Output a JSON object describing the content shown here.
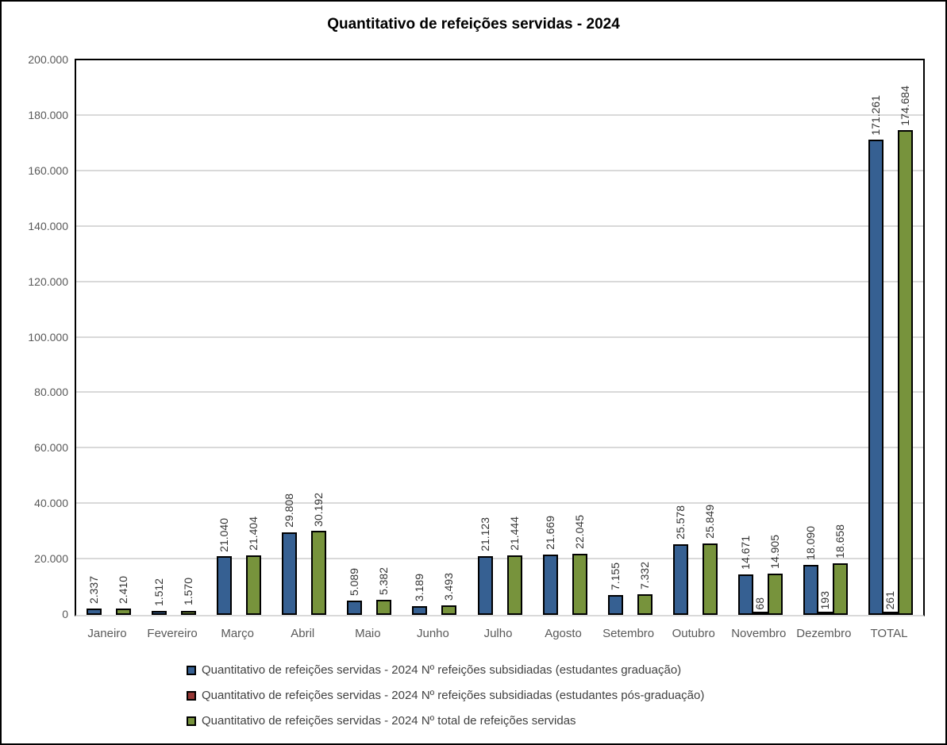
{
  "title": "Quantitativo de refeições servidas - 2024",
  "chart_data": {
    "type": "bar",
    "title": "Quantitativo de refeições servidas - 2024",
    "xlabel": "",
    "ylabel": "",
    "ylim": [
      0,
      200000
    ],
    "ytick_step": 20000,
    "ytick_labels": [
      "0",
      "20.000",
      "40.000",
      "60.000",
      "80.000",
      "100.000",
      "120.000",
      "140.000",
      "160.000",
      "180.000",
      "200.000"
    ],
    "grid": true,
    "gridline_color": "#d9d9d9",
    "axis_label_color": "#595959",
    "bar_border_color": "#000000",
    "legend_position": "bottom",
    "value_labels_rotated": true,
    "categories": [
      "Janeiro",
      "Fevereiro",
      "Março",
      "Abril",
      "Maio",
      "Junho",
      "Julho",
      "Agosto",
      "Setembro",
      "Outubro",
      "Novembro",
      "Dezembro",
      "TOTAL"
    ],
    "series": [
      {
        "name": "Quantitativo de refeições servidas - 2024 Nº refeições subsidiadas (estudantes graduação)",
        "color": "#366092",
        "values": [
          2337,
          1512,
          21040,
          29808,
          5089,
          3189,
          21123,
          21669,
          7155,
          25578,
          14671,
          18090,
          171261
        ]
      },
      {
        "name": "Quantitativo de refeições servidas - 2024 Nº refeições subsidiadas (estudantes pós-graduação)",
        "color": "#953735",
        "values": [
          null,
          null,
          null,
          null,
          null,
          null,
          null,
          null,
          null,
          null,
          68,
          193,
          261
        ]
      },
      {
        "name": "Quantitativo de refeições servidas - 2024 Nº total de refeições servidas",
        "color": "#77933C",
        "values": [
          2410,
          1570,
          21404,
          30192,
          5382,
          3493,
          21444,
          22045,
          7332,
          25849,
          14905,
          18658,
          174684
        ]
      }
    ]
  }
}
